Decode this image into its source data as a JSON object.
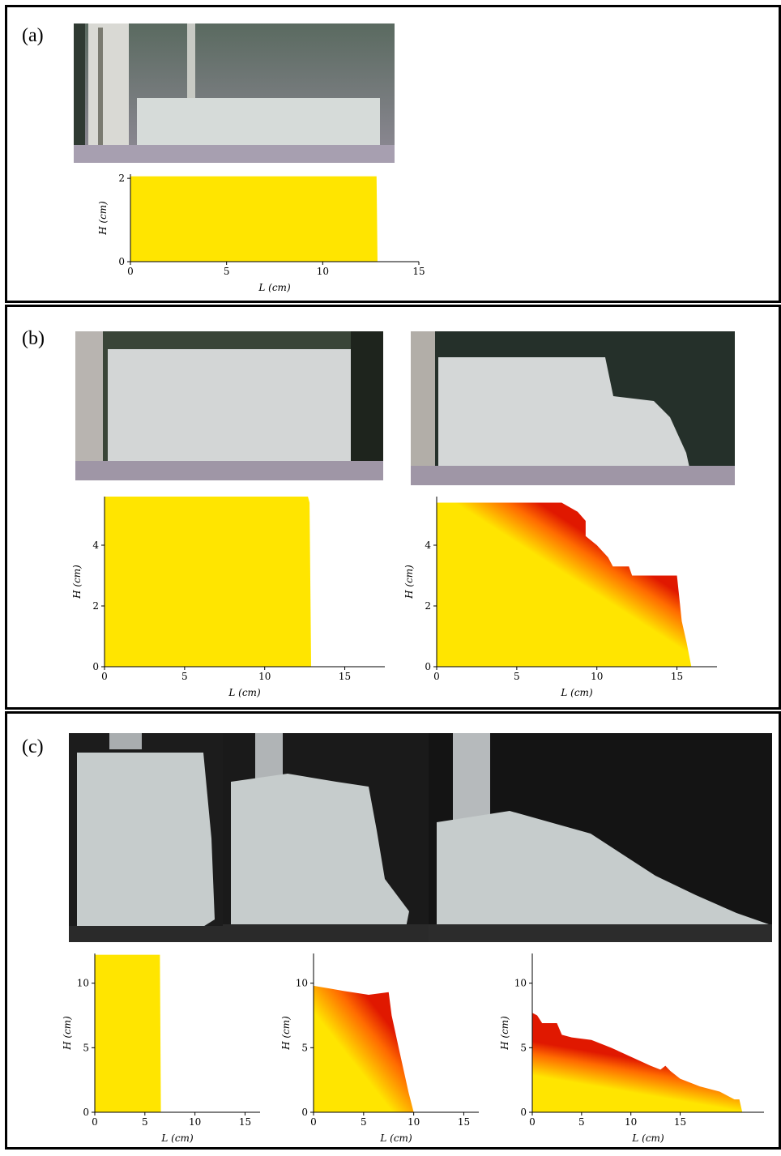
{
  "panels": [
    {
      "id": "a",
      "label": "(a)"
    },
    {
      "id": "b",
      "label": "(b)"
    },
    {
      "id": "c",
      "label": "(c)"
    }
  ],
  "colors": {
    "yellow": "#FFE500",
    "orange": "#FF6A00",
    "red": "#E01800",
    "dark_bg": "#1a1a1a",
    "grain": "#cfd6d6"
  },
  "chart_data": [
    {
      "id": "a-plot",
      "type": "area",
      "xlabel": "L (cm)",
      "ylabel": "H (cm)",
      "xlim": [
        0,
        15
      ],
      "ylim": [
        0,
        2.1
      ],
      "xticks": [
        0,
        5,
        10,
        15
      ],
      "yticks": [
        0,
        2
      ],
      "profile": {
        "x": [
          0,
          12.8,
          12.85
        ],
        "y": [
          2.05,
          2.05,
          0
        ]
      }
    },
    {
      "id": "b-plot-1",
      "type": "area",
      "xlabel": "L (cm)",
      "ylabel": "H (cm)",
      "xlim": [
        0,
        17.5
      ],
      "ylim": [
        0,
        5.6
      ],
      "xticks": [
        0,
        5,
        10,
        15
      ],
      "yticks": [
        0,
        2,
        4
      ],
      "profile": {
        "x": [
          0,
          12.7,
          12.8,
          12.9
        ],
        "y": [
          5.6,
          5.6,
          5.4,
          0
        ]
      }
    },
    {
      "id": "b-plot-2",
      "type": "area",
      "xlabel": "L (cm)",
      "ylabel": "H (cm)",
      "xlim": [
        0,
        17.5
      ],
      "ylim": [
        0,
        5.6
      ],
      "xticks": [
        0,
        5,
        10,
        15
      ],
      "yticks": [
        0,
        2,
        4
      ],
      "profile": {
        "x": [
          0,
          7.8,
          8.8,
          9.3,
          9.3,
          10.0,
          10.7,
          11.0,
          12.0,
          12.2,
          15.0,
          15.3,
          15.6,
          15.9
        ],
        "y": [
          5.4,
          5.4,
          5.1,
          4.8,
          4.3,
          4.0,
          3.6,
          3.3,
          3.3,
          3.0,
          3.0,
          1.5,
          0.8,
          0
        ]
      }
    },
    {
      "id": "c-plot-1",
      "type": "area",
      "xlabel": "L (cm)",
      "ylabel": "H (cm)",
      "xlim": [
        0,
        16.5
      ],
      "ylim": [
        0,
        12.3
      ],
      "xticks": [
        0,
        5,
        10,
        15
      ],
      "yticks": [
        0,
        5,
        10
      ],
      "profile": {
        "x": [
          0,
          6.5,
          6.6
        ],
        "y": [
          12.2,
          12.2,
          0
        ]
      }
    },
    {
      "id": "c-plot-2",
      "type": "area",
      "xlabel": "L (cm)",
      "ylabel": "H (cm)",
      "xlim": [
        0,
        16.5
      ],
      "ylim": [
        0,
        12.3
      ],
      "xticks": [
        0,
        5,
        10,
        15
      ],
      "yticks": [
        0,
        5,
        10
      ],
      "profile": {
        "x": [
          0,
          1.5,
          3.0,
          5.5,
          7.5,
          7.8,
          8.5,
          9.5,
          10.0
        ],
        "y": [
          9.8,
          9.6,
          9.4,
          9.1,
          9.3,
          7.5,
          5.0,
          1.5,
          0
        ]
      }
    },
    {
      "id": "c-plot-3",
      "type": "area",
      "xlabel": "L (cm)",
      "ylabel": "H (cm)",
      "xlim": [
        0,
        23.5
      ],
      "ylim": [
        0,
        12.3
      ],
      "xticks": [
        0,
        5,
        10,
        15
      ],
      "yticks": [
        0,
        5,
        10
      ],
      "profile": {
        "x": [
          0,
          0.5,
          1.0,
          2.5,
          3.0,
          4.0,
          6.0,
          8.0,
          10.0,
          12.0,
          13.0,
          13.5,
          14.0,
          15.0,
          17.0,
          19.0,
          20.5,
          21.0,
          21.3
        ],
        "y": [
          7.7,
          7.5,
          6.9,
          6.9,
          6.0,
          5.8,
          5.6,
          5.0,
          4.3,
          3.6,
          3.3,
          3.6,
          3.2,
          2.6,
          2.0,
          1.6,
          1.0,
          1.0,
          0
        ]
      }
    }
  ]
}
